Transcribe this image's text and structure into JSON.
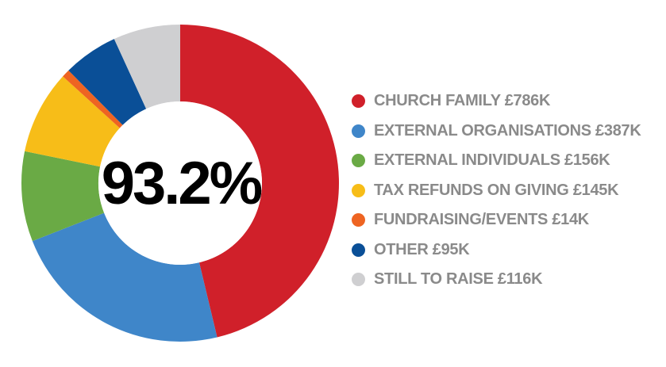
{
  "chart_data": {
    "type": "pie",
    "variant": "donut",
    "center_label": "93.2%",
    "categories": [
      "CHURCH FAMILY £786K",
      "EXTERNAL ORGANISATIONS £387K",
      "EXTERNAL INDIVIDUALS £156K",
      "TAX REFUNDS ON GIVING £145K",
      "FUNDRAISING/EVENTS £14K",
      "OTHER £95K",
      "STILL TO RAISE £116K"
    ],
    "values": [
      786,
      387,
      156,
      145,
      14,
      95,
      116
    ],
    "units": "£K",
    "colors": [
      "#d0202a",
      "#3f86c9",
      "#6aaa45",
      "#f7bd18",
      "#ee6422",
      "#0a4f97",
      "#cfcfd1"
    ],
    "legend_position": "right",
    "start": "top",
    "direction": "clockwise"
  }
}
